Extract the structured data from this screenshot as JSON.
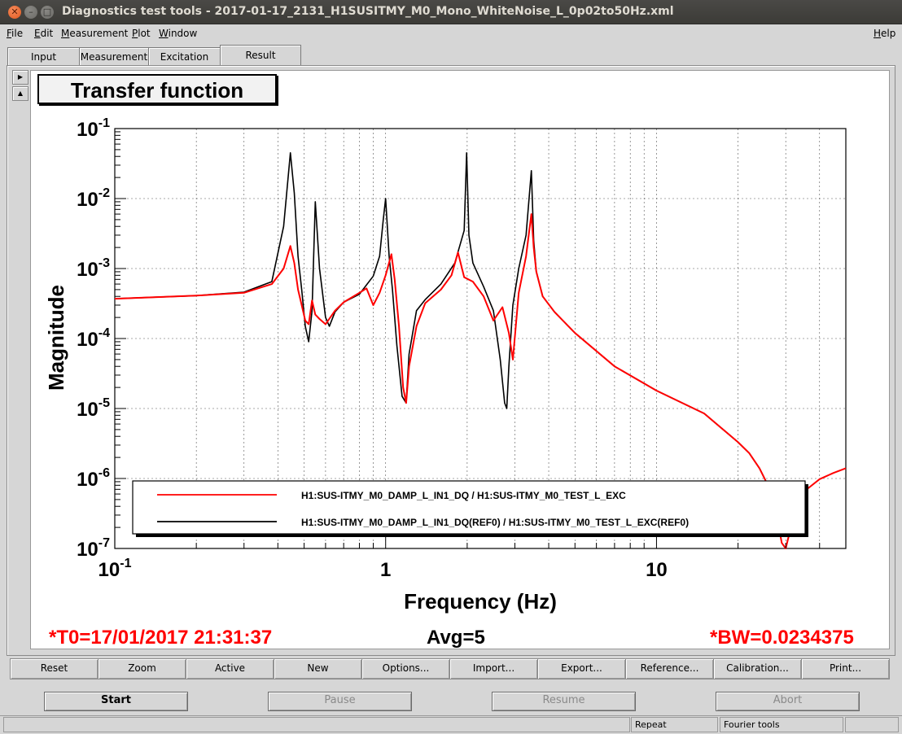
{
  "window": {
    "title": "Diagnostics test tools - 2017-01-17_2131_H1SUSITMY_M0_Mono_WhiteNoise_L_0p02to50Hz.xml",
    "close_glyph": "✕",
    "minimize_glyph": "–",
    "maximize_glyph": "□"
  },
  "menu": {
    "file": "File",
    "edit": "Edit",
    "measurement": "Measurement",
    "plot": "Plot",
    "window": "Window",
    "help": "Help"
  },
  "tabs": [
    "Input",
    "Measurement",
    "Excitation",
    "Result"
  ],
  "active_tab": "Result",
  "plot": {
    "title": "Transfer function"
  },
  "status": {
    "t0": "*T0=17/01/2017 21:31:37",
    "avg": "Avg=5",
    "bw": "*BW=0.0234375"
  },
  "toolbar": [
    "Reset",
    "Zoom",
    "Active",
    "New",
    "Options...",
    "Import...",
    "Export...",
    "Reference...",
    "Calibration...",
    "Print..."
  ],
  "controls": {
    "start": "Start",
    "pause": "Pause",
    "resume": "Resume",
    "abort": "Abort"
  },
  "statusbar": {
    "repeat": "Repeat",
    "fourier": "Fourier tools"
  },
  "chart_data": {
    "type": "line",
    "xlabel": "Frequency (Hz)",
    "ylabel": "Magnitude",
    "xscale": "log",
    "yscale": "log",
    "xlim": [
      0.1,
      50
    ],
    "ylim": [
      1e-07,
      0.1
    ],
    "grid": true,
    "legend_placement": "bottom",
    "x_ticks": [
      {
        "value": 0.1,
        "base": "10",
        "exp": "-1"
      },
      {
        "value": 1,
        "base": "1",
        "exp": ""
      },
      {
        "value": 10,
        "base": "10",
        "exp": ""
      }
    ],
    "y_ticks": [
      {
        "value": 0.1,
        "base": "10",
        "exp": "-1"
      },
      {
        "value": 0.01,
        "base": "10",
        "exp": "-2"
      },
      {
        "value": 0.001,
        "base": "10",
        "exp": "-3"
      },
      {
        "value": 0.0001,
        "base": "10",
        "exp": "-4"
      },
      {
        "value": 1e-05,
        "base": "10",
        "exp": "-5"
      },
      {
        "value": 1e-06,
        "base": "10",
        "exp": "-6"
      },
      {
        "value": 1e-07,
        "base": "10",
        "exp": "-7"
      }
    ],
    "series": [
      {
        "name": "H1:SUS-ITMY_M0_DAMP_L_IN1_DQ(REF0) / H1:SUS-ITMY_M0_TEST_L_EXC(REF0)",
        "color": "#000000",
        "x": [
          0.1,
          0.2,
          0.3,
          0.38,
          0.42,
          0.445,
          0.46,
          0.475,
          0.49,
          0.505,
          0.52,
          0.535,
          0.55,
          0.57,
          0.6,
          0.62,
          0.65,
          0.7,
          0.8,
          0.9,
          0.95,
          0.98,
          1.0,
          1.03,
          1.06,
          1.1,
          1.15,
          1.19,
          1.22,
          1.3,
          1.4,
          1.6,
          1.8,
          1.95,
          1.99,
          2.03,
          2.1,
          2.3,
          2.5,
          2.65,
          2.75,
          2.8,
          2.85,
          2.95,
          3.1,
          3.3,
          3.45,
          3.52,
          3.6,
          3.8,
          4.2,
          5,
          7,
          10,
          15,
          20,
          22,
          24,
          26,
          27.5
        ],
        "y": [
          0.00037,
          0.00041,
          0.00046,
          0.00065,
          0.004,
          0.045,
          0.012,
          0.0015,
          0.0005,
          0.00015,
          9e-05,
          0.00025,
          0.009,
          0.001,
          0.0002,
          0.00015,
          0.00024,
          0.00033,
          0.00043,
          0.00078,
          0.0015,
          0.005,
          0.01,
          0.0015,
          0.0005,
          8e-05,
          1.5e-05,
          1.2e-05,
          6e-05,
          0.00025,
          0.00036,
          0.0006,
          0.0012,
          0.0035,
          0.045,
          0.003,
          0.0012,
          0.00055,
          0.00025,
          5e-05,
          1.2e-05,
          1e-05,
          4e-05,
          0.0003,
          0.001,
          0.003,
          0.025,
          0.0025,
          0.0009,
          0.0004,
          0.00024,
          0.00012,
          4e-05,
          1.8e-05,
          8.5e-06,
          3.3e-06,
          2.3e-06,
          1.4e-06,
          7.5e-07,
          3e-07
        ]
      },
      {
        "name": "H1:SUS-ITMY_M0_DAMP_L_IN1_DQ / H1:SUS-ITMY_M0_TEST_L_EXC",
        "color": "#ff0000",
        "x": [
          0.1,
          0.2,
          0.3,
          0.38,
          0.42,
          0.445,
          0.46,
          0.475,
          0.49,
          0.505,
          0.52,
          0.535,
          0.55,
          0.57,
          0.6,
          0.65,
          0.7,
          0.8,
          0.85,
          0.9,
          0.95,
          1.0,
          1.05,
          1.08,
          1.12,
          1.16,
          1.19,
          1.22,
          1.3,
          1.4,
          1.6,
          1.75,
          1.85,
          1.95,
          2.1,
          2.3,
          2.5,
          2.7,
          2.85,
          2.95,
          3.1,
          3.3,
          3.45,
          3.52,
          3.6,
          3.8,
          4.2,
          5,
          7,
          10,
          15,
          20,
          22,
          24,
          26,
          28,
          29,
          30,
          32,
          35,
          40,
          45,
          50
        ],
        "y": [
          0.00037,
          0.00041,
          0.00045,
          0.0006,
          0.001,
          0.0021,
          0.0012,
          0.0005,
          0.0003,
          0.00018,
          0.00016,
          0.00035,
          0.00022,
          0.00019,
          0.00016,
          0.00025,
          0.00033,
          0.00045,
          0.00052,
          0.0003,
          0.00045,
          0.0008,
          0.0016,
          0.0007,
          0.00015,
          2e-05,
          1.2e-05,
          4e-05,
          0.00015,
          0.00032,
          0.0005,
          0.0008,
          0.0017,
          0.00075,
          0.00065,
          0.0004,
          0.00018,
          0.00028,
          0.00012,
          5e-05,
          0.00045,
          0.0015,
          0.006,
          0.002,
          0.0009,
          0.0004,
          0.00024,
          0.00012,
          4e-05,
          1.8e-05,
          8.5e-06,
          3.3e-06,
          2.3e-06,
          1.4e-06,
          7.5e-07,
          2.5e-07,
          1.2e-07,
          1e-07,
          2.8e-07,
          6.5e-07,
          9.8e-07,
          1.2e-06,
          1.4e-06
        ]
      }
    ]
  }
}
